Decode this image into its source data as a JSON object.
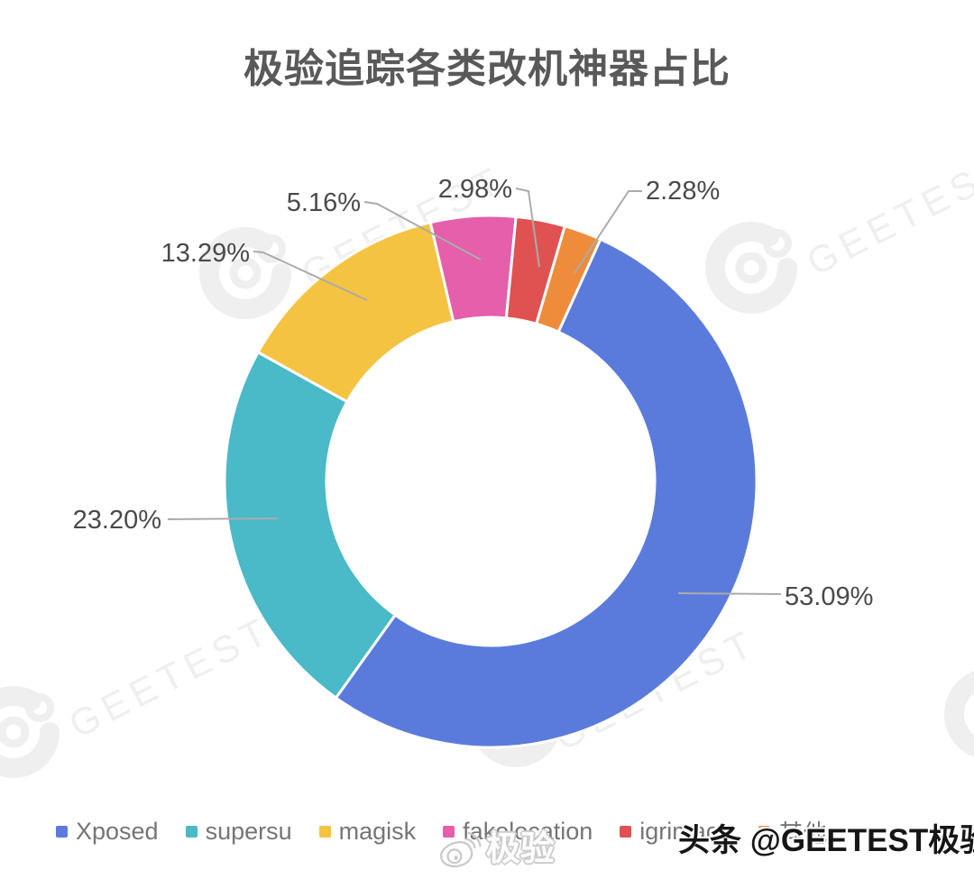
{
  "title": "极验追踪各类改机神器占比",
  "chart_data": {
    "type": "pie",
    "subtype": "donut",
    "title": "极验追踪各类改机神器占比",
    "legend_position": "bottom",
    "grid": false,
    "series": [
      {
        "name": "Xposed",
        "value": 53.09,
        "label": "53.09%",
        "color": "#5B7BDC"
      },
      {
        "name": "supersu",
        "value": 23.2,
        "label": "23.20%",
        "color": "#4AB9C8"
      },
      {
        "name": "magisk",
        "value": 13.29,
        "label": "13.29%",
        "color": "#F5C342"
      },
      {
        "name": "fakelocation",
        "value": 5.16,
        "label": "5.16%",
        "color": "#E55FAA"
      },
      {
        "name": "igrimace",
        "value": 2.98,
        "label": "2.98%",
        "color": "#E05252"
      },
      {
        "name": "其他",
        "value": 2.28,
        "label": "2.28%",
        "color": "#EE8C3C"
      }
    ],
    "legend": [
      "Xposed",
      "supersu",
      "magisk",
      "fakelocation",
      "igrimace",
      "其他"
    ],
    "clockwise_order_from_top": [
      "fakelocation",
      "igrimace",
      "其他",
      "Xposed",
      "supersu",
      "magisk"
    ],
    "start_angle_deg": -13.1
  },
  "watermarks": {
    "brand_text": "GEETEST",
    "weibo_label": "极验",
    "toutiao_credit": "头条 @GEETEST极验"
  }
}
